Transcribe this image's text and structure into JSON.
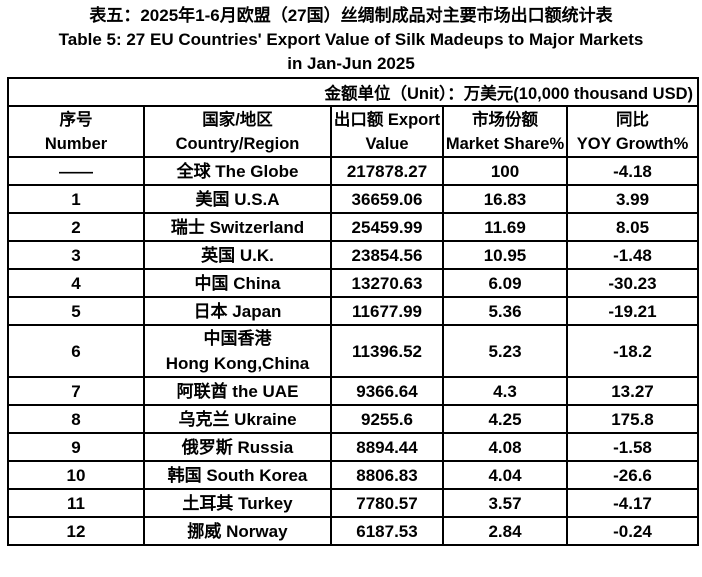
{
  "title": {
    "line1_zh": "表五：2025年1-6月欧盟（27国）丝绸制成品对主要市场出口额统计表",
    "line2_en": "Table 5: 27 EU Countries' Export Value of Silk Madeups to Major Markets",
    "line3_en": "in Jan-Jun 2025"
  },
  "unit_note": "金额单位（Unit）：万美元(10,000 thousand USD)",
  "table": {
    "columns": [
      {
        "key": "number",
        "label": "序号\nNumber"
      },
      {
        "key": "country",
        "label": "国家/地区\nCountry/Region"
      },
      {
        "key": "export",
        "label": "出口额 Export\nValue"
      },
      {
        "key": "share",
        "label": "市场份额\nMarket Share%"
      },
      {
        "key": "yoy",
        "label": "同比\nYOY Growth%"
      }
    ],
    "rows": [
      {
        "number": "——",
        "country": "全球 The Globe",
        "export": "217878.27",
        "share": "100",
        "yoy": "-4.18"
      },
      {
        "number": "1",
        "country": "美国 U.S.A",
        "export": "36659.06",
        "share": "16.83",
        "yoy": "3.99"
      },
      {
        "number": "2",
        "country": "瑞士 Switzerland",
        "export": "25459.99",
        "share": "11.69",
        "yoy": "8.05"
      },
      {
        "number": "3",
        "country": "英国 U.K.",
        "export": "23854.56",
        "share": "10.95",
        "yoy": "-1.48"
      },
      {
        "number": "4",
        "country": "中国 China",
        "export": "13270.63",
        "share": "6.09",
        "yoy": "-30.23"
      },
      {
        "number": "5",
        "country": "日本 Japan",
        "export": "11677.99",
        "share": "5.36",
        "yoy": "-19.21"
      },
      {
        "number": "6",
        "country": "中国香港\nHong Kong,China",
        "export": "11396.52",
        "share": "5.23",
        "yoy": "-18.2"
      },
      {
        "number": "7",
        "country": "阿联酋 the UAE",
        "export": "9366.64",
        "share": "4.3",
        "yoy": "13.27"
      },
      {
        "number": "8",
        "country": "乌克兰 Ukraine",
        "export": "9255.6",
        "share": "4.25",
        "yoy": "175.8"
      },
      {
        "number": "9",
        "country": "俄罗斯 Russia",
        "export": "8894.44",
        "share": "4.08",
        "yoy": "-1.58"
      },
      {
        "number": "10",
        "country": "韩国 South Korea",
        "export": "8806.83",
        "share": "4.04",
        "yoy": "-26.6"
      },
      {
        "number": "11",
        "country": "土耳其 Turkey",
        "export": "7780.57",
        "share": "3.57",
        "yoy": "-4.17"
      },
      {
        "number": "12",
        "country": "挪威 Norway",
        "export": "6187.53",
        "share": "2.84",
        "yoy": "-0.24"
      }
    ]
  },
  "colors": {
    "text": "#000000",
    "background": "#ffffff",
    "border": "#000000"
  }
}
